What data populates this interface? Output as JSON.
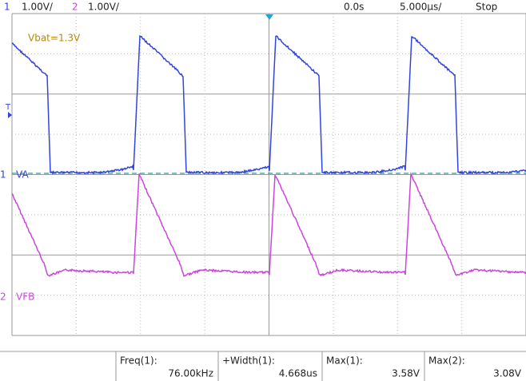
{
  "header": {
    "ch1_number": "1",
    "ch1_scale": "1.00V/",
    "ch2_number": "2",
    "ch2_scale": "1.00V/",
    "time_offset": "0.0s",
    "time_scale": "5.000µs/",
    "status": "Stop"
  },
  "screen": {
    "annotation": "Vbat=1.3V",
    "trigger_marker": "T",
    "ch1_marker": "1",
    "ch1_name": "VA",
    "ch2_marker": "2",
    "ch2_name": "VFB"
  },
  "measurements": [
    {
      "label": "Freq(1):",
      "value": "76.00kHz"
    },
    {
      "label": "+Width(1):",
      "value": "4.668us"
    },
    {
      "label": "Max(1):",
      "value": "3.58V"
    },
    {
      "label": "Max(2):",
      "value": "3.08V"
    }
  ]
}
